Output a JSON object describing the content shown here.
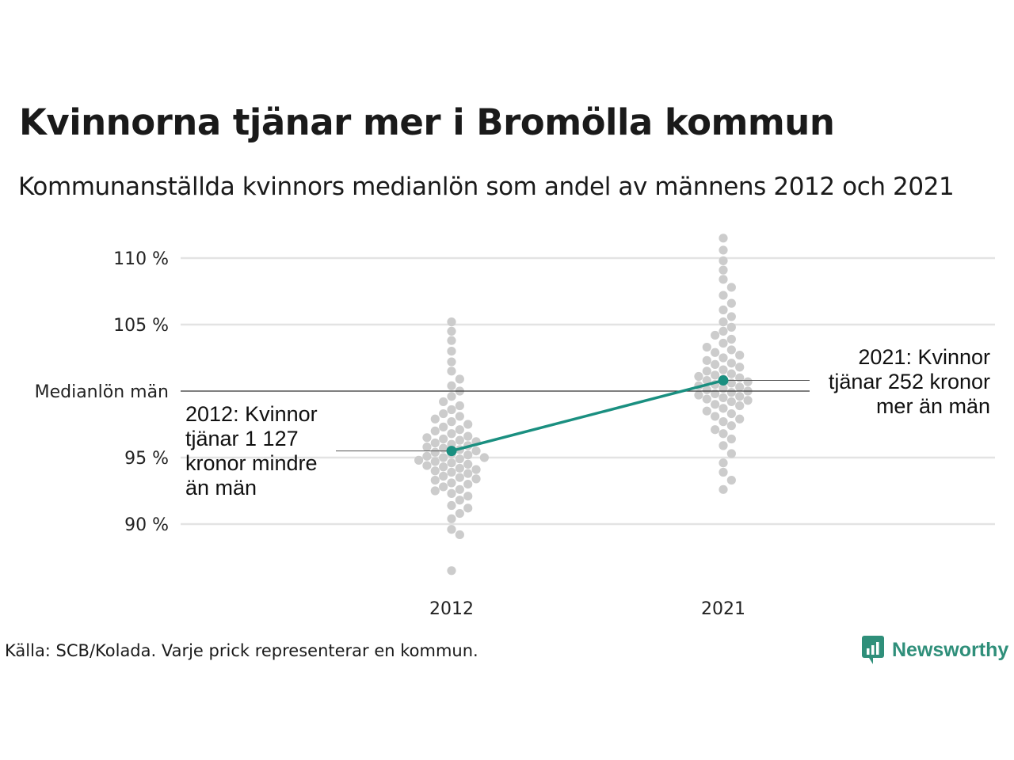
{
  "title": "Kvinnorna tjänar mer i Bromölla kommun",
  "subtitle": "Kommunanställda kvinnors medianlön som andel av männens 2012 och 2021",
  "source": "Källa: SCB/Kolada. Varje prick representerar en kommun.",
  "brand": {
    "name": "Newsworthy",
    "icon": "chart-logo-icon",
    "color": "#2f8f7a"
  },
  "colors": {
    "highlight": "#1a8f80",
    "dots": "#cccccc",
    "grid": "#e3e3e3",
    "reference": "#333333"
  },
  "chart_data": {
    "type": "scatter",
    "categories": [
      "2012",
      "2021"
    ],
    "ylim": [
      86,
      112
    ],
    "y_ticks": [
      {
        "value": 90,
        "label": "90 %"
      },
      {
        "value": 95,
        "label": "95 %"
      },
      {
        "value": 105,
        "label": "105 %"
      },
      {
        "value": 110,
        "label": "110 %"
      }
    ],
    "reference_line": {
      "value": 100,
      "label": "Medianlön män"
    },
    "grid": true,
    "highlight": {
      "name": "Bromölla",
      "values": [
        95.5,
        100.8
      ],
      "annotations": [
        {
          "category": "2012",
          "lines": [
            "2012: Kvinnor",
            "tjänar 1 127",
            "kronor mindre",
            "än män"
          ]
        },
        {
          "category": "2021",
          "lines": [
            "2021: Kvinnor",
            "tjänar 252 kronor",
            "mer än män"
          ]
        }
      ]
    },
    "distributions": [
      {
        "category": "2012",
        "min": 86.5,
        "max": 105.2,
        "center": 95.3,
        "values": [
          86.5,
          89.2,
          89.6,
          90.4,
          90.8,
          91.2,
          91.4,
          91.8,
          92.1,
          92.3,
          92.5,
          92.6,
          92.8,
          93.0,
          93.1,
          93.3,
          93.4,
          93.5,
          93.6,
          93.8,
          93.9,
          94.0,
          94.1,
          94.2,
          94.3,
          94.4,
          94.5,
          94.6,
          94.7,
          94.8,
          94.9,
          95.0,
          95.0,
          95.1,
          95.2,
          95.3,
          95.4,
          95.5,
          95.6,
          95.7,
          95.8,
          95.9,
          96.0,
          96.1,
          96.2,
          96.3,
          96.4,
          96.5,
          96.6,
          96.8,
          97.0,
          97.1,
          97.3,
          97.5,
          97.7,
          97.9,
          98.1,
          98.3,
          98.6,
          98.9,
          99.2,
          99.6,
          100.0,
          100.4,
          100.9,
          101.5,
          102.2,
          103.0,
          103.8,
          104.5,
          105.2
        ]
      },
      {
        "category": "2021",
        "min": 92.6,
        "max": 111.5,
        "center": 100.2,
        "values": [
          92.6,
          93.3,
          93.9,
          94.6,
          95.3,
          95.9,
          96.4,
          96.8,
          97.1,
          97.4,
          97.7,
          97.9,
          98.1,
          98.3,
          98.5,
          98.7,
          98.9,
          99.0,
          99.2,
          99.3,
          99.4,
          99.5,
          99.6,
          99.7,
          99.8,
          99.9,
          100.0,
          100.1,
          100.2,
          100.3,
          100.4,
          100.5,
          100.6,
          100.7,
          100.8,
          100.9,
          101.0,
          101.1,
          101.2,
          101.3,
          101.5,
          101.6,
          101.8,
          102.0,
          102.1,
          102.3,
          102.5,
          102.7,
          102.9,
          103.1,
          103.3,
          103.6,
          103.9,
          104.2,
          104.5,
          104.8,
          105.2,
          105.6,
          106.1,
          106.6,
          107.2,
          107.8,
          108.4,
          109.1,
          109.8,
          110.6,
          111.5
        ]
      }
    ]
  }
}
